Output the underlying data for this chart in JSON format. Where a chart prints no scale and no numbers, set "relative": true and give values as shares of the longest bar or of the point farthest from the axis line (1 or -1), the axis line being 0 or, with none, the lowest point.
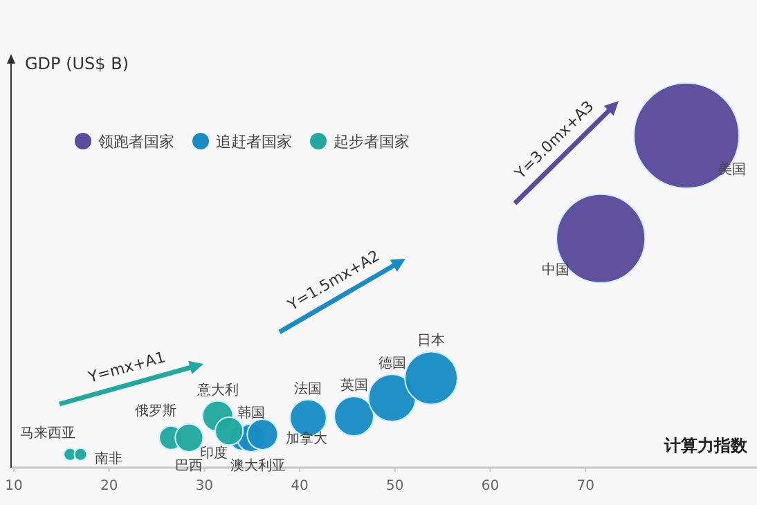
{
  "chart_data": {
    "type": "bubble",
    "ylabel": "GDP (US$ B)",
    "xlabel": "计算力指数",
    "relative": true,
    "xlim": [
      10,
      88
    ],
    "xticks": [
      10,
      20,
      30,
      40,
      50,
      60,
      70
    ],
    "legend": "top left",
    "series": [
      {
        "name": "领跑者国家",
        "color": "#5b4b9c",
        "x": [
          71.6,
          80.6
        ],
        "values": [
          0.69,
          1
        ],
        "sizes": [
          0.71,
          1
        ]
      },
      {
        "name": "追赶者国家",
        "color": "#1a8cc4",
        "x": [
          33.9,
          34.9,
          36.1,
          40.9,
          45.7,
          49.7,
          53.8
        ],
        "values": [
          0.09,
          0.09,
          0.1,
          0.15,
          0.155,
          0.21,
          0.27
        ],
        "sizes": [
          0.056,
          0.07,
          0.084,
          0.12,
          0.14,
          0.2,
          0.25
        ]
      },
      {
        "name": "起步者国家",
        "color": "#22a89e",
        "x": [
          15.9,
          17.0,
          26.5,
          28.4,
          31.4,
          32.6
        ],
        "values": [
          0.04,
          0.04,
          0.09,
          0.09,
          0.155,
          0.11
        ],
        "sizes": [
          0.014,
          0.014,
          0.05,
          0.07,
          0.084,
          0.07
        ]
      }
    ],
    "annotations": [
      {
        "text": "中国",
        "x": 71.6,
        "y": 0.69
      },
      {
        "text": "美国",
        "x": 80.6,
        "y": 1
      },
      {
        "text": "澳大利亚",
        "x": 33.9,
        "y": 0.09
      },
      {
        "text": "韩国",
        "x": 34.9,
        "y": 0.09
      },
      {
        "text": "加拿大",
        "x": 36.1,
        "y": 0.1
      },
      {
        "text": "法国",
        "x": 40.9,
        "y": 0.15
      },
      {
        "text": "英国",
        "x": 45.7,
        "y": 0.155
      },
      {
        "text": "德国",
        "x": 49.7,
        "y": 0.21
      },
      {
        "text": "日本",
        "x": 53.8,
        "y": 0.27
      },
      {
        "text": "马来西亚",
        "x": 15.9,
        "y": 0.04
      },
      {
        "text": "南非",
        "x": 17.0,
        "y": 0.04
      },
      {
        "text": "俄罗斯",
        "x": 26.5,
        "y": 0.09
      },
      {
        "text": "巴西",
        "x": 28.4,
        "y": 0.09
      },
      {
        "text": "意大利",
        "x": 31.4,
        "y": 0.155
      },
      {
        "text": "印度",
        "x": 32.6,
        "y": 0.11
      },
      "Y=mx+A1",
      "Y=1.5mx+A2",
      "Y=3.0mx+A3"
    ]
  }
}
